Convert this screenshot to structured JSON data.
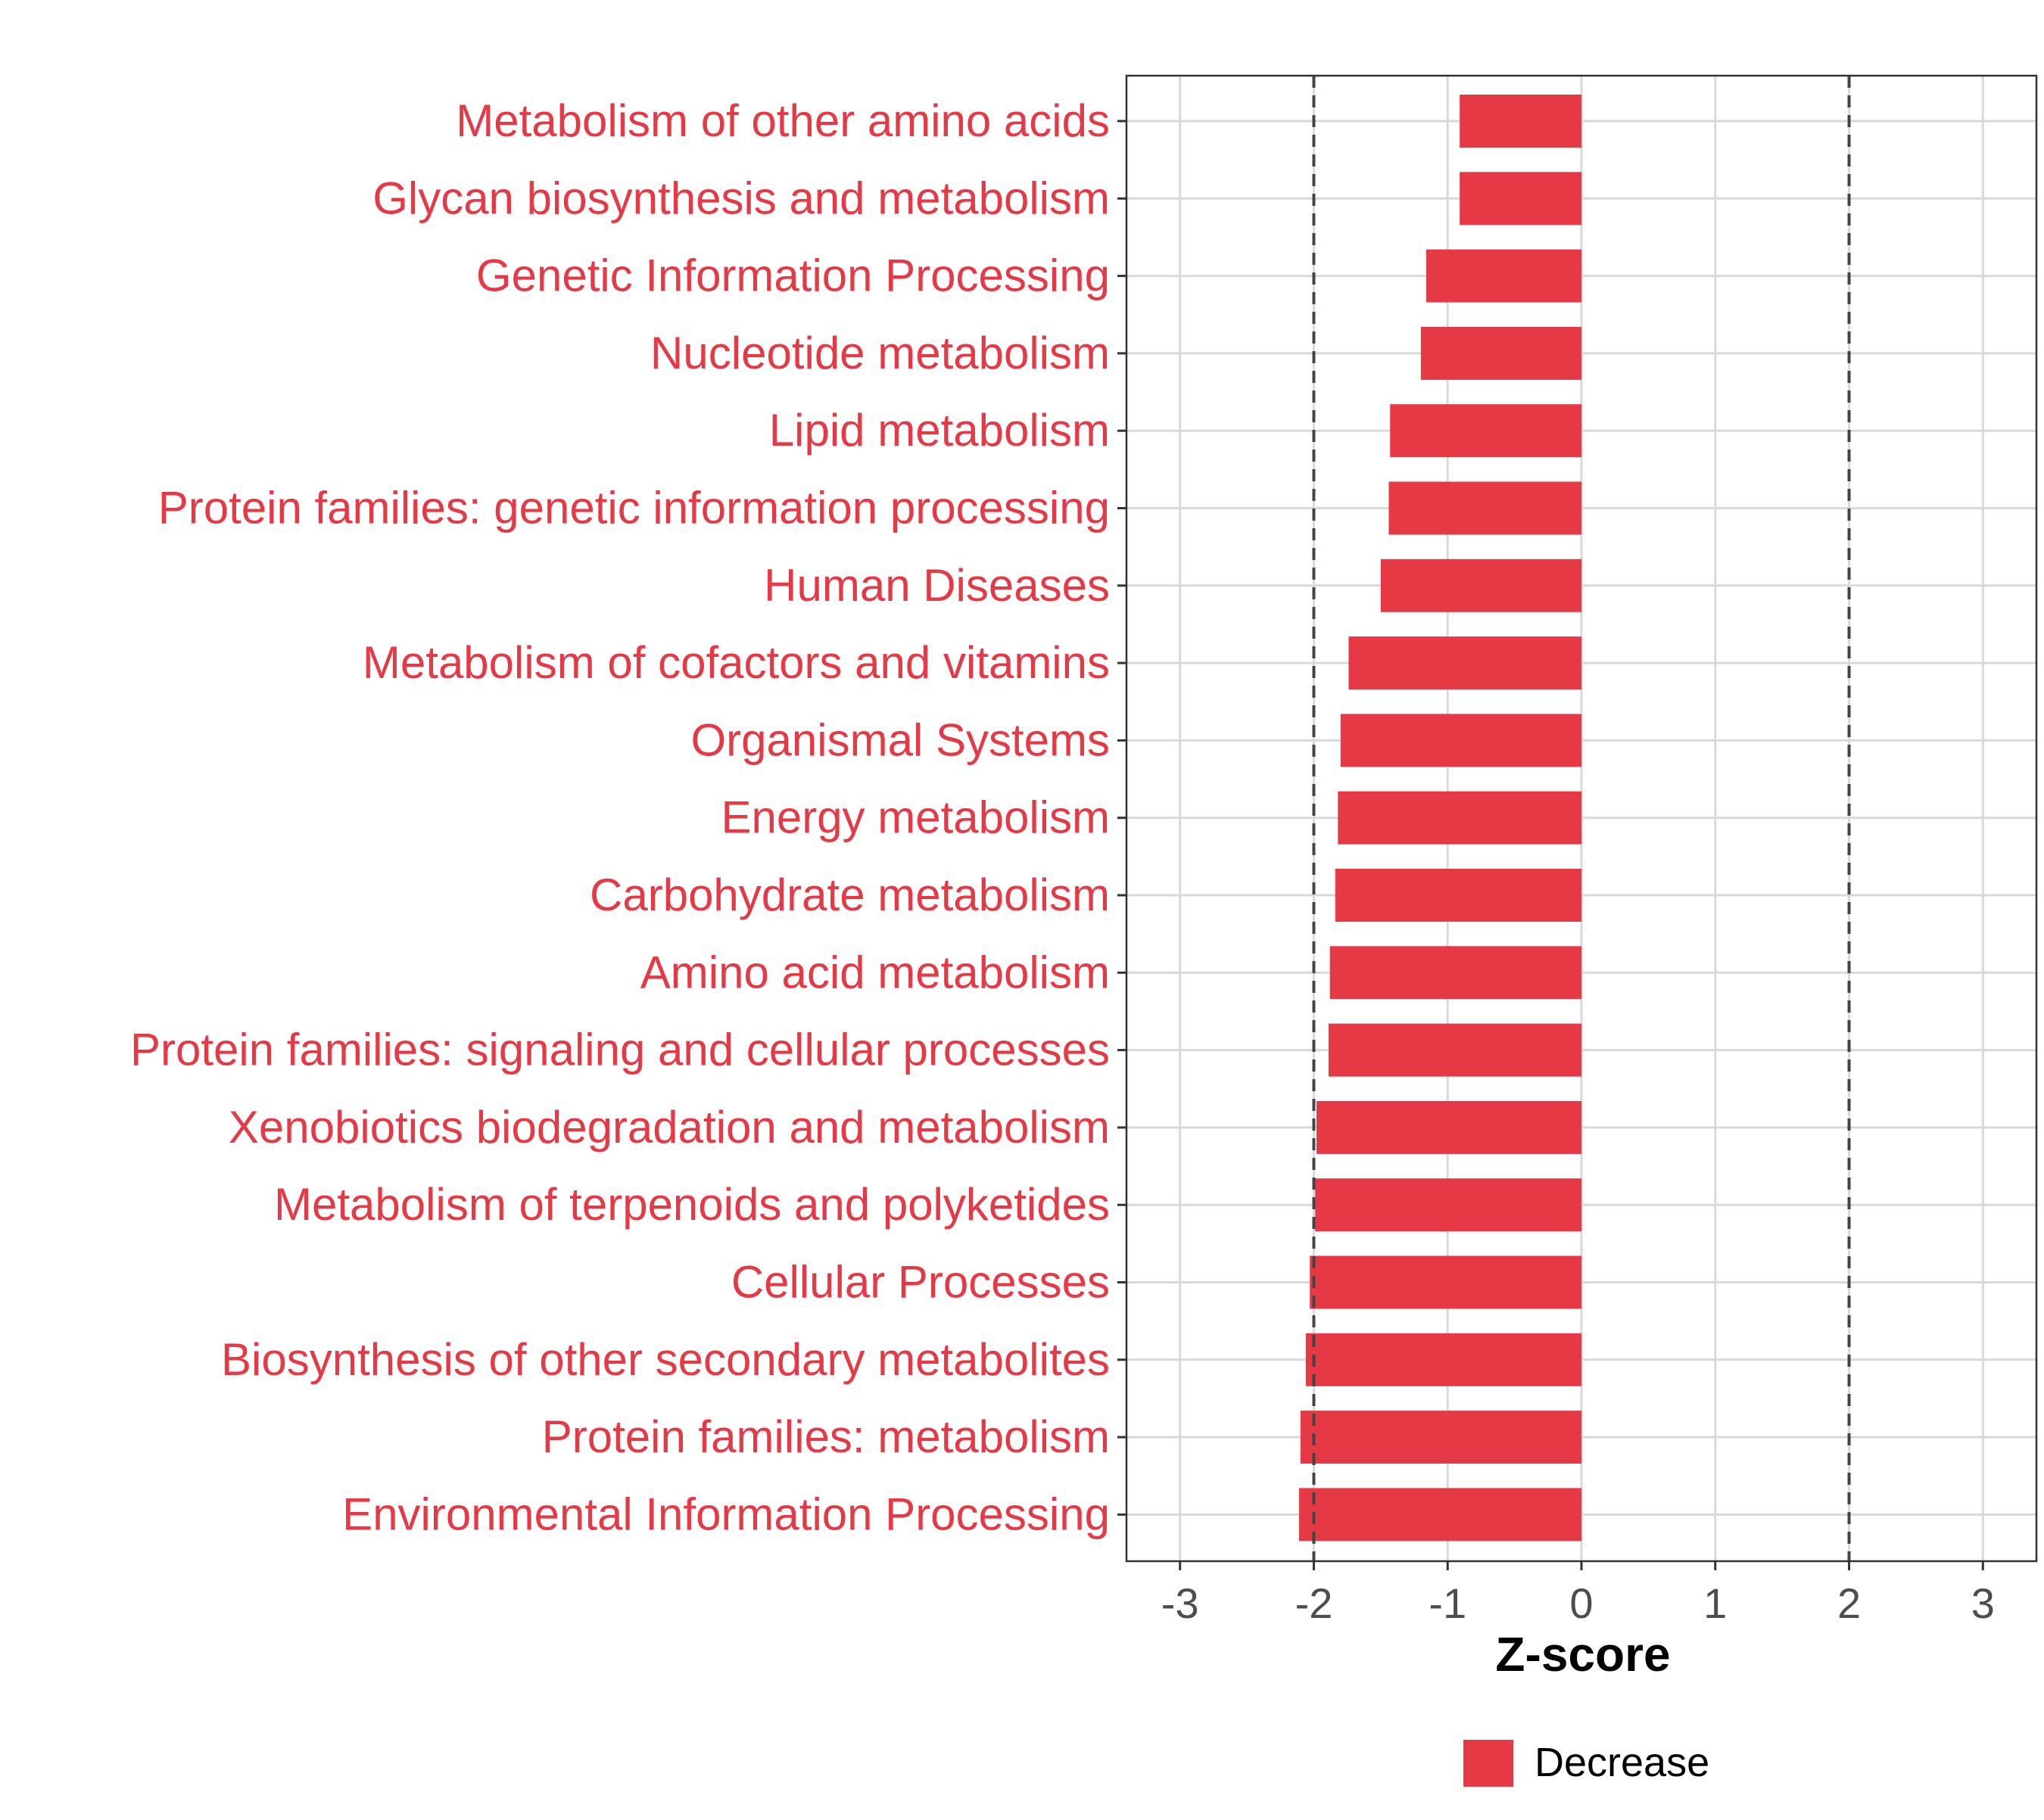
{
  "chart_data": {
    "type": "bar",
    "orientation": "horizontal",
    "xlabel": "Z-score",
    "ylabel": "",
    "xlim": [
      -3.4,
      3.4
    ],
    "xticks": [
      -3,
      -2,
      -1,
      0,
      1,
      2,
      3
    ],
    "xtick_labels": [
      "-3",
      "-2",
      "-1",
      "0",
      "1",
      "2",
      "3"
    ],
    "reference_lines": [
      -2,
      2
    ],
    "grid": true,
    "legend": {
      "position": "bottom",
      "entries": [
        {
          "label": "Decrease",
          "color": "#E63946"
        }
      ]
    },
    "bar_color": "#E63946",
    "label_color": "#E63946",
    "categories": [
      "Metabolism of other amino acids",
      "Glycan biosynthesis and metabolism",
      "Genetic Information Processing",
      "Nucleotide metabolism",
      "Lipid metabolism",
      "Protein families: genetic information processing",
      "Human Diseases",
      "Metabolism of cofactors and vitamins",
      "Organismal Systems",
      "Energy metabolism",
      "Carbohydrate metabolism",
      "Amino acid metabolism",
      "Protein families: signaling and cellular processes",
      "Xenobiotics biodegradation and metabolism",
      "Metabolism of terpenoids and polyketides",
      "Cellular Processes",
      "Biosynthesis of other secondary metabolites",
      "Protein families: metabolism",
      "Environmental Information Processing"
    ],
    "values": [
      -0.91,
      -0.91,
      -1.16,
      -1.2,
      -1.43,
      -1.44,
      -1.5,
      -1.74,
      -1.8,
      -1.82,
      -1.84,
      -1.88,
      -1.89,
      -1.98,
      -1.99,
      -2.03,
      -2.06,
      -2.1,
      -2.11
    ]
  }
}
